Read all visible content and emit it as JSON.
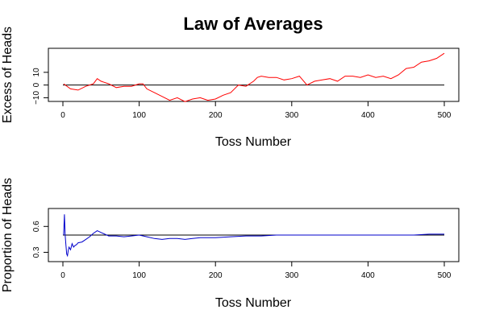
{
  "chart_data": [
    {
      "type": "line",
      "title": "Law of Averages",
      "xlabel": "Toss Number",
      "ylabel": "Excess of Heads",
      "xlim": [
        0,
        500
      ],
      "ylim": [
        -11,
        27
      ],
      "x_ticks": [
        "0",
        "100",
        "200",
        "300",
        "400",
        "500"
      ],
      "x_tick_values": [
        0,
        100,
        200,
        300,
        400,
        500
      ],
      "y_ticks": [
        "−10",
        "0",
        "10"
      ],
      "y_tick_values": [
        -10,
        0,
        10
      ],
      "reference_line": 0,
      "grid": false,
      "series": [
        {
          "color": "#ff0000",
          "x": [
            1,
            10,
            20,
            30,
            40,
            45,
            50,
            60,
            70,
            80,
            90,
            100,
            105,
            110,
            120,
            130,
            140,
            150,
            160,
            170,
            180,
            190,
            200,
            210,
            220,
            230,
            240,
            250,
            255,
            260,
            270,
            280,
            290,
            300,
            310,
            320,
            330,
            340,
            350,
            360,
            370,
            380,
            390,
            400,
            410,
            420,
            430,
            440,
            450,
            460,
            470,
            480,
            490,
            500
          ],
          "y": [
            1,
            -3,
            -4,
            -1,
            1,
            5,
            3,
            1,
            -2,
            -1,
            -1,
            1,
            1,
            -3,
            -6,
            -9,
            -12,
            -10,
            -13,
            -11,
            -10,
            -12,
            -11,
            -8,
            -6,
            0,
            -1,
            3,
            6,
            7,
            6,
            6,
            4,
            5,
            7,
            0,
            3,
            4,
            5,
            3,
            7,
            7,
            6,
            8,
            6,
            7,
            5,
            8,
            13,
            14,
            18,
            19,
            21,
            25
          ]
        }
      ]
    },
    {
      "type": "line",
      "title": "",
      "xlabel": "Toss Number",
      "ylabel": "Proportion of Heads",
      "xlim": [
        0,
        500
      ],
      "ylim": [
        0.22,
        0.78
      ],
      "x_ticks": [
        "0",
        "100",
        "200",
        "300",
        "400",
        "500"
      ],
      "x_tick_values": [
        0,
        100,
        200,
        300,
        400,
        500
      ],
      "y_ticks": [
        "0.3",
        "0.6"
      ],
      "y_tick_values": [
        0.3,
        0.6
      ],
      "reference_line": 0.5,
      "grid": false,
      "series": [
        {
          "color": "#0000cc",
          "x": [
            1,
            2,
            3,
            4,
            5,
            6,
            7,
            8,
            10,
            12,
            14,
            16,
            18,
            20,
            25,
            30,
            35,
            40,
            45,
            50,
            60,
            70,
            80,
            90,
            100,
            110,
            120,
            130,
            140,
            150,
            160,
            170,
            180,
            190,
            200,
            220,
            240,
            260,
            280,
            300,
            320,
            340,
            360,
            380,
            400,
            420,
            440,
            460,
            480,
            500
          ],
          "y": [
            0.5,
            0.74,
            0.5,
            0.38,
            0.28,
            0.26,
            0.32,
            0.36,
            0.33,
            0.4,
            0.36,
            0.38,
            0.39,
            0.41,
            0.42,
            0.45,
            0.48,
            0.52,
            0.55,
            0.53,
            0.49,
            0.49,
            0.48,
            0.49,
            0.5,
            0.48,
            0.46,
            0.45,
            0.46,
            0.46,
            0.45,
            0.46,
            0.47,
            0.47,
            0.47,
            0.48,
            0.49,
            0.49,
            0.5,
            0.5,
            0.5,
            0.5,
            0.5,
            0.5,
            0.5,
            0.5,
            0.5,
            0.5,
            0.51,
            0.51
          ]
        }
      ]
    }
  ]
}
